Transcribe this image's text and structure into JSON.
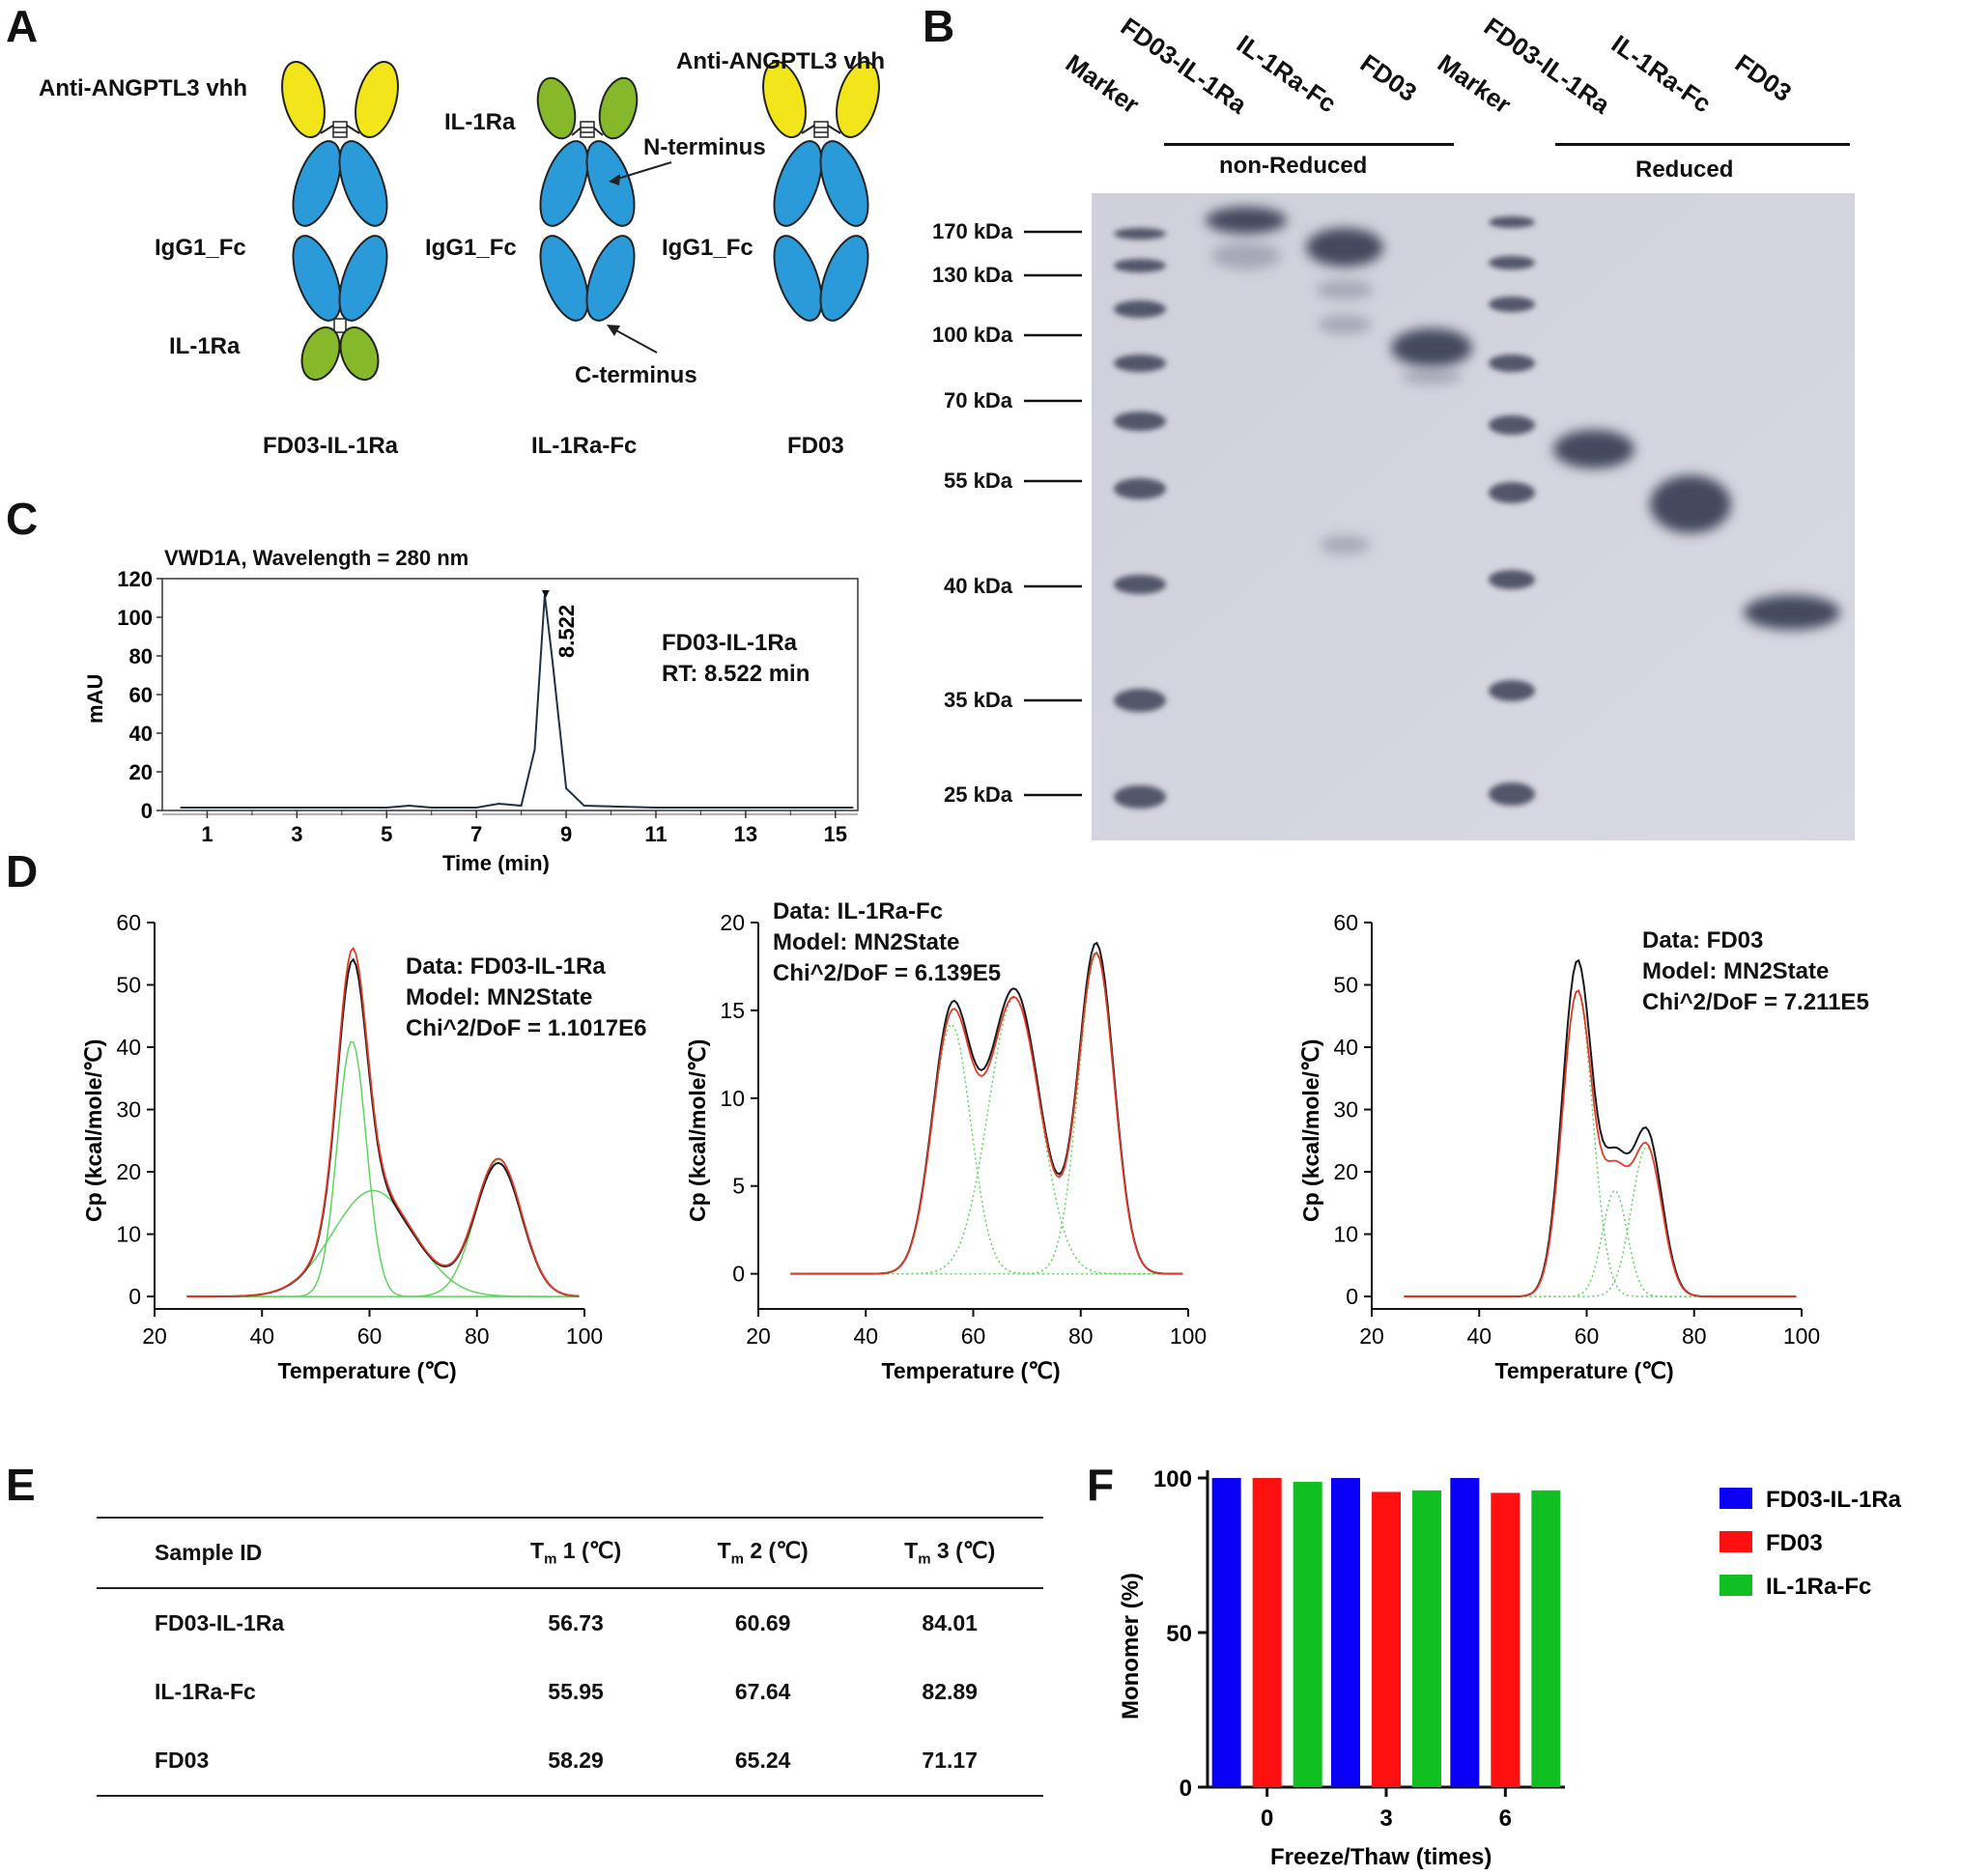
{
  "panel_letters": {
    "a": "A",
    "b": "B",
    "c": "C",
    "d": "D",
    "e": "E",
    "f": "F"
  },
  "panel_a": {
    "label_anti_left": "Anti-ANGPTL3 vhh",
    "label_anti_right": "Anti-ANGPTL3 vhh",
    "label_il1ra_left": "IL-1Ra",
    "label_il1ra_mid": "IL-1Ra",
    "label_igg_1": "IgG1_Fc",
    "label_igg_2": "IgG1_Fc",
    "label_igg_3": "IgG1_Fc",
    "label_nterm": "N-terminus",
    "label_cterm": "C-terminus",
    "name_1": "FD03-IL-1Ra",
    "name_2": "IL-1Ra-Fc",
    "name_3": "FD03",
    "colors": {
      "vhh": "#f2e61a",
      "fc": "#2a9ad8",
      "il1ra": "#86b92a"
    }
  },
  "panel_b": {
    "lanes": [
      "Marker",
      "FD03-IL-1Ra",
      "IL-1Ra-Fc",
      "FD03",
      "Marker",
      "FD03-IL-1Ra",
      "IL-1Ra-Fc",
      "FD03"
    ],
    "group_nonreduced": "non-Reduced",
    "group_reduced": "Reduced",
    "markers": [
      "170 kDa",
      "130 kDa",
      "100 kDa",
      "70 kDa",
      "55 kDa",
      "40 kDa",
      "35 kDa",
      "25 kDa"
    ]
  },
  "panel_c": {
    "title": "VWD1A, Wavelength = 280 nm",
    "ylabel": "mAU",
    "xlabel": "Time (min)",
    "peak_label": "8.522",
    "annotation": "FD03-IL-1Ra\nRT: 8.522 min",
    "chart_data": {
      "type": "line",
      "xlim": [
        0,
        15.5
      ],
      "ylim": [
        0,
        120
      ],
      "xticks": [
        "1",
        "3",
        "5",
        "7",
        "9",
        "11",
        "13",
        "15"
      ],
      "yticks": [
        "0",
        "20",
        "40",
        "60",
        "80",
        "100",
        "120"
      ],
      "peak": {
        "x": 8.522,
        "y": 110
      },
      "x": [
        0.4,
        5.0,
        5.5,
        6.0,
        7.0,
        7.5,
        8.0,
        8.3,
        8.522,
        8.7,
        9.0,
        9.4,
        11,
        15.4
      ],
      "y": [
        0,
        0,
        1,
        0,
        0,
        2,
        1,
        30,
        110,
        75,
        10,
        1,
        0,
        0
      ]
    }
  },
  "panel_d": [
    {
      "ann": "Data: FD03-IL-1Ra\nModel: MN2State\nChi^2/DoF = 1.1017E6",
      "ylabel": "Cp (kcal/mole/℃)",
      "xlabel": "Temperature (℃)",
      "xticks": [
        "20",
        "40",
        "60",
        "80",
        "100"
      ],
      "yticks": [
        "0",
        "10",
        "20",
        "30",
        "40",
        "50",
        "60"
      ],
      "ymax": 60,
      "tm": [
        56.73,
        60.69,
        84.01
      ],
      "heights": [
        41,
        17,
        22
      ],
      "widths": [
        2.7,
        7.5,
        4.3
      ],
      "peak_measured": 54
    },
    {
      "ann": "Data: IL-1Ra-Fc\nModel: MN2State\nChi^2/DoF = 6.139E5",
      "ylabel": "Cp (kcal/mole/℃)",
      "xlabel": "Temperature (℃)",
      "xticks": [
        "20",
        "40",
        "60",
        "80",
        "100"
      ],
      "yticks": [
        "0",
        "5",
        "10",
        "15",
        "20"
      ],
      "ymax": 20,
      "tm": [
        55.95,
        67.64,
        82.89
      ],
      "heights": [
        14.2,
        15.7,
        18.2
      ],
      "widths": [
        3.6,
        4.8,
        3.3
      ],
      "peak_measured": 18.6
    },
    {
      "ann": "Data: FD03\nModel: MN2State\nChi^2/DoF = 7.211E5",
      "ylabel": "Cp (kcal/mole/℃)",
      "xlabel": "Temperature (℃)",
      "xticks": [
        "20",
        "40",
        "60",
        "80",
        "100"
      ],
      "yticks": [
        "0",
        "10",
        "20",
        "30",
        "40",
        "50",
        "60"
      ],
      "ymax": 60,
      "tm": [
        58.29,
        65.24,
        71.17
      ],
      "heights": [
        49,
        17,
        24
      ],
      "widths": [
        2.8,
        2.3,
        2.8
      ],
      "peak_measured": 54
    }
  ],
  "panel_e": {
    "headers": [
      "Sample ID",
      "T",
      "m",
      " 1 (℃)",
      " 2 (℃)",
      " 3 (℃)"
    ],
    "rows": [
      [
        "FD03-IL-1Ra",
        "56.73",
        "60.69",
        "84.01"
      ],
      [
        "IL-1Ra-Fc",
        "55.95",
        "67.64",
        "82.89"
      ],
      [
        "FD03",
        "58.29",
        "65.24",
        "71.17"
      ]
    ]
  },
  "panel_f": {
    "ylabel": "Monomer (%)",
    "xlabel": "Freeze/Thaw (times)",
    "chart_data": {
      "type": "bar",
      "categories": [
        "0",
        "3",
        "6"
      ],
      "ylim": [
        0,
        100
      ],
      "yticks": [
        "0",
        "50",
        "100"
      ],
      "series": [
        {
          "name": "FD03-IL-1Ra",
          "color": "#0a00f5",
          "values": [
            100,
            100,
            100
          ]
        },
        {
          "name": "FD03",
          "color": "#ff1010",
          "values": [
            100,
            95.5,
            95.2
          ]
        },
        {
          "name": "IL-1Ra-Fc",
          "color": "#10c020",
          "values": [
            98.8,
            96,
            96
          ]
        }
      ]
    }
  }
}
